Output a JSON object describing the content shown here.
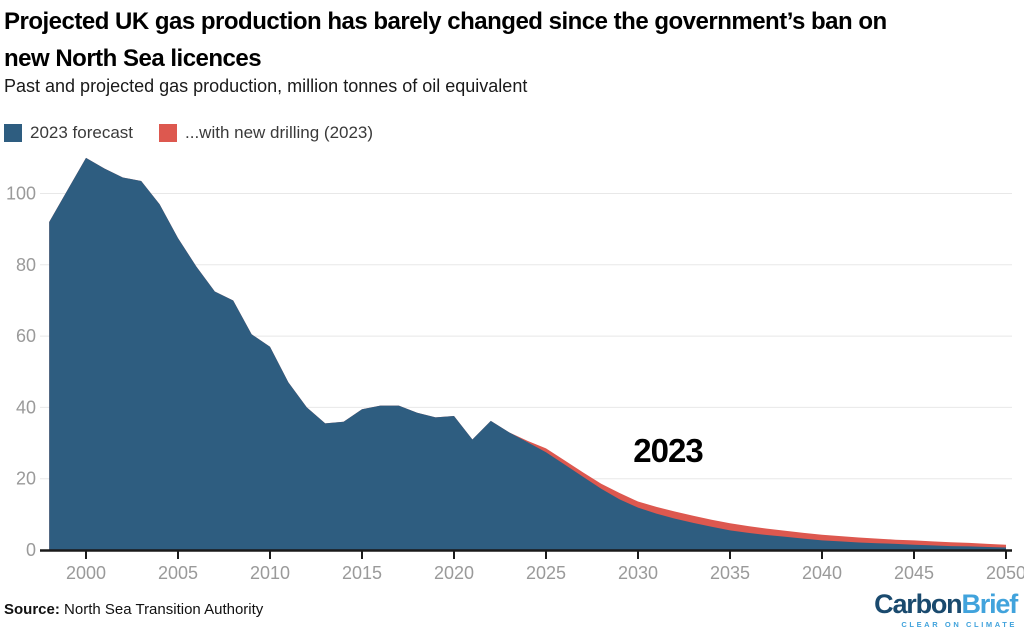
{
  "header": {
    "title_line1": "Projected UK gas production has barely changed since the government’s ban on",
    "title_line2": "new North Sea licences",
    "subtitle": "Past and projected gas production, million tonnes of oil equivalent"
  },
  "legend": {
    "items": [
      {
        "label": "2023 forecast",
        "color": "#2e5d80"
      },
      {
        "label": "...with new drilling (2023)",
        "color": "#dd584f"
      }
    ]
  },
  "chart_data": {
    "type": "area",
    "title": "Projected UK gas production has barely changed since the government’s ban on new North Sea licences",
    "subtitle": "Past and projected gas production, million tonnes of oil equivalent",
    "ylabel": "million tonnes of oil equivalent",
    "xlabel": "",
    "x": [
      1998,
      1999,
      2000,
      2001,
      2002,
      2003,
      2004,
      2005,
      2006,
      2007,
      2008,
      2009,
      2010,
      2011,
      2012,
      2013,
      2014,
      2015,
      2016,
      2017,
      2018,
      2019,
      2020,
      2021,
      2022,
      2023,
      2024,
      2025,
      2026,
      2027,
      2028,
      2029,
      2030,
      2031,
      2032,
      2033,
      2034,
      2035,
      2036,
      2037,
      2038,
      2039,
      2040,
      2041,
      2042,
      2043,
      2044,
      2045,
      2046,
      2047,
      2048,
      2049,
      2050
    ],
    "series": [
      {
        "name": "...with new drilling (2023)",
        "color": "#dd584f",
        "values": [
          92,
          101,
          110,
          107,
          104.5,
          103.5,
          97,
          87.5,
          79.5,
          72.5,
          70,
          60.5,
          57,
          47,
          40,
          35.5,
          36,
          39.5,
          40.5,
          40.5,
          38.5,
          37.2,
          37.6,
          31,
          36.2,
          33,
          30.6,
          28.5,
          25.2,
          21.8,
          18.6,
          16,
          13.6,
          12.1,
          10.8,
          9.6,
          8.5,
          7.5,
          6.7,
          6.0,
          5.4,
          4.8,
          4.3,
          3.9,
          3.5,
          3.2,
          2.9,
          2.7,
          2.4,
          2.2,
          2.0,
          1.7,
          1.5
        ]
      },
      {
        "name": "2023 forecast",
        "color": "#2e5d80",
        "values": [
          92,
          101,
          110,
          107,
          104.5,
          103.5,
          97,
          87.5,
          79.5,
          72.5,
          70,
          60.5,
          57,
          47,
          40,
          35.5,
          36,
          39.5,
          40.5,
          40.5,
          38.5,
          37.2,
          37.6,
          31,
          36.2,
          33,
          30.2,
          27.4,
          24,
          20.6,
          17.2,
          14.2,
          11.9,
          10.2,
          8.8,
          7.6,
          6.5,
          5.5,
          4.8,
          4.2,
          3.7,
          3.2,
          2.7,
          2.4,
          2.1,
          1.9,
          1.7,
          1.5,
          1.3,
          1.1,
          1.0,
          0.85,
          0.7
        ]
      }
    ],
    "annotation": {
      "label": "2023"
    },
    "x_ticks": [
      2000,
      2005,
      2010,
      2015,
      2020,
      2025,
      2030,
      2035,
      2040,
      2045,
      2050
    ],
    "y_ticks": [
      0,
      20,
      40,
      60,
      80,
      100
    ],
    "ylim": [
      0,
      112
    ],
    "grid": "horizontal",
    "legend_position": "top-left",
    "colors": {
      "grid": "#e8e8e8",
      "axis": "#1a1a1a",
      "tick_label": "#9a9a9a"
    }
  },
  "footer": {
    "source_label": "Source:",
    "source_text": " North Sea Transition Authority",
    "logo": {
      "part1": "Carbon",
      "part2": "Brief",
      "tagline": "CLEAR ON CLIMATE",
      "color1": "#1a4a6e",
      "color2": "#41a3dc"
    }
  }
}
